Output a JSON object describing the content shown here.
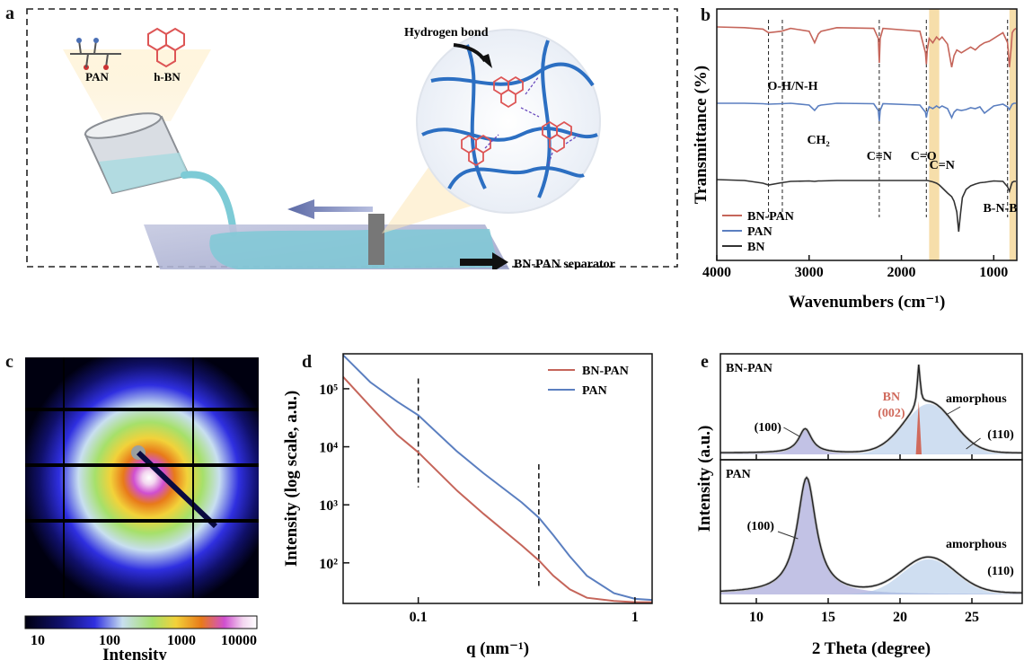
{
  "panels": {
    "a": "a",
    "b": "b",
    "c": "c",
    "d": "d",
    "e": "e"
  },
  "panel_a": {
    "mol_pan": "PAN",
    "mol_hbn": "h-BN",
    "hydrogen_bond": "Hydrogen bond",
    "separator": "BN-PAN separator"
  },
  "colors": {
    "bnpan": "#c5655a",
    "pan": "#5b7fc0",
    "bn": "#333333",
    "highlight": "#f6deaa",
    "pan_fill": "#9fa9d8",
    "bnpan_peak": "#d06a5c"
  },
  "chart_data": [
    {
      "id": "b",
      "type": "line",
      "xlabel": "Wavenumbers (cm⁻¹)",
      "ylabel": "Transmittance (%)",
      "xlim": [
        4000,
        750
      ],
      "x_reversed": true,
      "xticks": [
        "4000",
        "3000",
        "2000",
        "1000"
      ],
      "legend": [
        "BN-PAN",
        "PAN",
        "BN"
      ],
      "legend_position": "bottom-left",
      "annotations": [
        "O-H/N-H",
        "CH₂",
        "C≡N",
        "C=O",
        "C=N",
        "B-N-B"
      ],
      "dashed_lines_at": [
        3440,
        3290,
        2240,
        1730,
        850
      ],
      "highlight_bands": [
        [
          1700,
          1590
        ],
        [
          830,
          760
        ]
      ],
      "series": [
        {
          "name": "BN-PAN",
          "x": [
            4000,
            3700,
            3500,
            3440,
            3300,
            3200,
            3000,
            2940,
            2900,
            2870,
            2700,
            2300,
            2250,
            2240,
            2230,
            2200,
            1800,
            1740,
            1730,
            1720,
            1700,
            1660,
            1620,
            1590,
            1560,
            1500,
            1455,
            1430,
            1400,
            1350,
            1300,
            1250,
            1200,
            1150,
            1100,
            1050,
            1000,
            950,
            900,
            850,
            830,
            810,
            800,
            780,
            760
          ],
          "values": [
            96,
            95.5,
            94.5,
            92,
            93,
            95,
            93,
            85,
            91,
            93,
            95.5,
            95,
            88,
            71,
            88,
            95,
            93,
            78,
            70,
            80,
            88,
            85,
            89,
            87,
            89,
            84,
            68,
            76,
            80,
            78,
            80,
            82,
            80,
            83,
            85,
            86,
            88,
            90,
            92,
            85,
            68,
            82,
            92,
            94,
            95
          ]
        },
        {
          "name": "PAN",
          "x": [
            4000,
            3700,
            3500,
            3440,
            3300,
            3200,
            3000,
            2940,
            2900,
            2870,
            2700,
            2300,
            2250,
            2240,
            2230,
            2200,
            1800,
            1740,
            1730,
            1720,
            1700,
            1660,
            1620,
            1590,
            1560,
            1500,
            1455,
            1430,
            1400,
            1350,
            1300,
            1250,
            1200,
            1150,
            1100,
            1050,
            1000,
            950,
            900,
            850,
            830,
            810,
            800,
            780,
            760
          ],
          "values": [
            60,
            60,
            59.5,
            59,
            59.5,
            60,
            58,
            52,
            57,
            58,
            60,
            59.5,
            52,
            40,
            52,
            59.5,
            58,
            50,
            44,
            50,
            56,
            54,
            57,
            55,
            57,
            54,
            44,
            50,
            53,
            52,
            53,
            55,
            54,
            56,
            49,
            53,
            57,
            58,
            59,
            56,
            53,
            57,
            59,
            60,
            60
          ]
        },
        {
          "name": "BN",
          "x": [
            4000,
            3700,
            3500,
            3440,
            3300,
            3200,
            3000,
            2940,
            2900,
            2870,
            2700,
            2300,
            2250,
            2240,
            2230,
            2200,
            1800,
            1740,
            1730,
            1720,
            1700,
            1660,
            1620,
            1590,
            1560,
            1500,
            1455,
            1430,
            1400,
            1380,
            1360,
            1340,
            1300,
            1250,
            1200,
            1150,
            1100,
            1000,
            900,
            850,
            830,
            810,
            800,
            780,
            760
          ],
          "values": [
            28,
            27,
            24,
            22,
            24.5,
            26,
            26.5,
            26,
            26.5,
            26.5,
            27,
            27,
            27,
            27,
            27,
            27,
            27,
            27,
            27,
            27,
            26.5,
            25.5,
            24,
            22,
            19,
            13,
            9,
            4,
            -8,
            -30,
            -10,
            8,
            17,
            21,
            23,
            24.5,
            25,
            26.5,
            26,
            20,
            15,
            22,
            25,
            26,
            26
          ]
        }
      ]
    },
    {
      "id": "c",
      "type": "heatmap",
      "colorbar_label": "Intensity",
      "colorbar_ticks": [
        "10",
        "100",
        "1000",
        "10000"
      ],
      "colorbar_scale": "log"
    },
    {
      "id": "d",
      "type": "line",
      "xlabel": "q (nm⁻¹)",
      "ylabel": "Intensity (log scale, a.u.)",
      "x_scale": "log",
      "y_scale": "log",
      "xlim": [
        0.045,
        1.2
      ],
      "ylim": [
        20,
        400000
      ],
      "xticks": [
        "0.1",
        "1"
      ],
      "yticks": [
        "10²",
        "10³",
        "10⁴",
        "10⁵"
      ],
      "legend_position": "top-right",
      "dashed_lines_at": [
        0.1,
        0.36
      ],
      "series": [
        {
          "name": "BN-PAN",
          "x": [
            0.045,
            0.06,
            0.08,
            0.1,
            0.15,
            0.2,
            0.3,
            0.36,
            0.42,
            0.5,
            0.6,
            0.8,
            1.0,
            1.2
          ],
          "values": [
            160000,
            50000,
            16000,
            8000,
            1800,
            700,
            200,
            110,
            60,
            35,
            25,
            22,
            21,
            21
          ]
        },
        {
          "name": "PAN",
          "x": [
            0.045,
            0.06,
            0.08,
            0.1,
            0.15,
            0.2,
            0.3,
            0.36,
            0.42,
            0.5,
            0.6,
            0.8,
            1.0,
            1.2
          ],
          "values": [
            380000,
            130000,
            60000,
            35000,
            8500,
            3500,
            1100,
            600,
            300,
            130,
            60,
            30,
            24,
            23
          ]
        }
      ]
    },
    {
      "id": "e",
      "type": "line",
      "xlabel": "2 Theta (degree)",
      "ylabel": "Intensity (a.u.)",
      "xlim": [
        7.5,
        28.5
      ],
      "xticks": [
        "10",
        "15",
        "20",
        "25"
      ],
      "subplots": [
        {
          "name": "BN-PAN",
          "annotations": [
            "(100)",
            "BN",
            "(002)",
            "amorphous",
            "(110)"
          ],
          "peaks": [
            {
              "label": "(100)",
              "x": 13.4,
              "height": 0.25
            },
            {
              "label": "BN (002)",
              "x": 21.3,
              "height": 0.72
            },
            {
              "label": "amorphous",
              "x": 22.0,
              "height": 0.52
            },
            {
              "label": "(110)",
              "x": 24.5,
              "height": 0.06
            }
          ]
        },
        {
          "name": "PAN",
          "annotations": [
            "(100)",
            "amorphous",
            "(110)"
          ],
          "peaks": [
            {
              "label": "(100)",
              "x": 13.5,
              "height": 0.92
            },
            {
              "label": "amorphous",
              "x": 22.0,
              "height": 0.28
            },
            {
              "label": "(110)",
              "x": 24.0,
              "height": 0.05
            }
          ]
        }
      ]
    }
  ]
}
